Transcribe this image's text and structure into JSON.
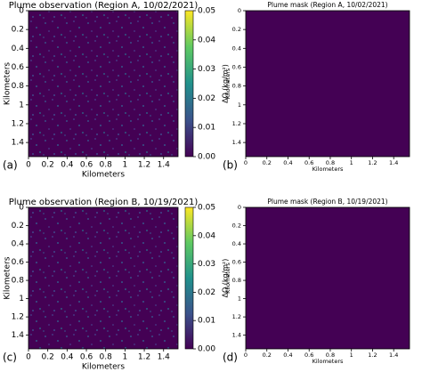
{
  "chart_data": [
    {
      "type": "heatmap",
      "title": "Plume observation (Region A, 10/02/2021)",
      "xlabel": "Kilometers",
      "ylabel": "Kilometers",
      "panel_label": "(a)",
      "xlim": [
        0,
        1.55
      ],
      "ylim": [
        1.55,
        0
      ],
      "xticks": [
        0,
        0.2,
        0.4,
        0.6,
        0.8,
        1,
        1.2,
        1.4
      ],
      "yticks": [
        0,
        0.2,
        0.4,
        0.6,
        0.8,
        1,
        1.2,
        1.4
      ],
      "colormap": "viridis",
      "fill_color": "#440154",
      "colorbar": {
        "label": "ΔΩ (kg/m²)",
        "lim": [
          0,
          0.05
        ],
        "ticks": [
          {
            "value": 0,
            "label": "0.00"
          },
          {
            "value": 0.01,
            "label": "0.01"
          },
          {
            "value": 0.02,
            "label": "0.02"
          },
          {
            "value": 0.03,
            "label": "0.03"
          },
          {
            "value": 0.04,
            "label": "0.04"
          },
          {
            "value": 0.05,
            "label": "0.05"
          }
        ]
      }
    },
    {
      "type": "heatmap",
      "title": "Plume mask (Region A, 10/02/2021)",
      "xlabel": "Kilometers",
      "ylabel": "Kilometers",
      "panel_label": "(b)",
      "xlim": [
        0,
        1.55
      ],
      "ylim": [
        1.55,
        0
      ],
      "xticks": [
        0,
        0.2,
        0.4,
        0.6,
        0.8,
        1,
        1.2,
        1.4
      ],
      "yticks": [
        0,
        0.2,
        0.4,
        0.6,
        0.8,
        1,
        1.2,
        1.4
      ],
      "colormap": "viridis",
      "fill_color": "#440154"
    },
    {
      "type": "heatmap",
      "title": "Plume observation (Region B, 10/19/2021)",
      "xlabel": "Kilometers",
      "ylabel": "Kilometers",
      "panel_label": "(c)",
      "xlim": [
        0,
        1.55
      ],
      "ylim": [
        1.55,
        0
      ],
      "xticks": [
        0,
        0.2,
        0.4,
        0.6,
        0.8,
        1,
        1.2,
        1.4
      ],
      "yticks": [
        0,
        0.2,
        0.4,
        0.6,
        0.8,
        1,
        1.2,
        1.4
      ],
      "colormap": "viridis",
      "fill_color": "#440154",
      "colorbar": {
        "label": "ΔΩ (kg/m²)",
        "lim": [
          0,
          0.05
        ],
        "ticks": [
          {
            "value": 0,
            "label": "0.00"
          },
          {
            "value": 0.01,
            "label": "0.01"
          },
          {
            "value": 0.02,
            "label": "0.02"
          },
          {
            "value": 0.03,
            "label": "0.03"
          },
          {
            "value": 0.04,
            "label": "0.04"
          },
          {
            "value": 0.05,
            "label": "0.05"
          }
        ]
      }
    },
    {
      "type": "heatmap",
      "title": "Plume mask (Region B, 10/19/2021)",
      "xlabel": "Kilometers",
      "ylabel": "Kilometers",
      "panel_label": "(d)",
      "xlim": [
        0,
        1.55
      ],
      "ylim": [
        1.55,
        0
      ],
      "xticks": [
        0,
        0.2,
        0.4,
        0.6,
        0.8,
        1,
        1.2,
        1.4
      ],
      "yticks": [
        0,
        0.2,
        0.4,
        0.6,
        0.8,
        1,
        1.2,
        1.4
      ],
      "colormap": "viridis",
      "fill_color": "#440154"
    }
  ]
}
